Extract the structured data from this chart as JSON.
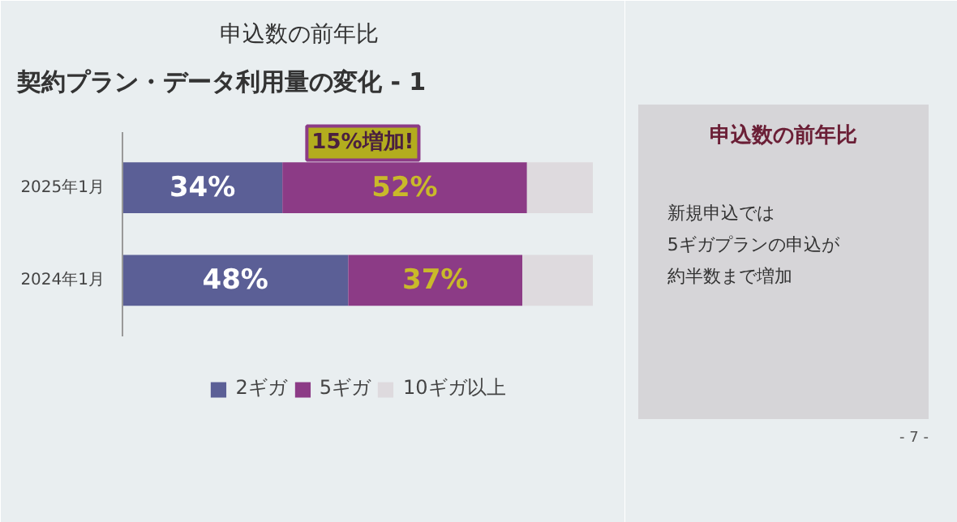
{
  "chart_data": [
    {
      "type": "bar",
      "orientation": "horizontal",
      "stacked": true,
      "title": "契約プラン・データ利用量の変化 - 1",
      "subtitle": "申込数の前年比",
      "categories": [
        "2025年1月",
        "2024年1月"
      ],
      "series": [
        {
          "name": "2ギガ",
          "color": "#5b5f96",
          "values": [
            34,
            48
          ],
          "value_labels": [
            "34%",
            "48%"
          ]
        },
        {
          "name": "5ギガ",
          "color": "#8c3b86",
          "values": [
            52,
            37
          ],
          "value_labels": [
            "52%",
            "37%"
          ]
        },
        {
          "name": "10ギガ以上",
          "color": "#dedade",
          "values": [
            14,
            15
          ]
        }
      ],
      "xlim": [
        0,
        100
      ],
      "tick_labels": "y",
      "legend": "bottom",
      "grid": false,
      "annotations": [
        "15%増加!"
      ]
    },
    {
      "type": "other",
      "title": "申込数の前年比",
      "annotations": [
        "新規申込では",
        "5ギガプランの申込が",
        "約半数まで増加",
        "- 7 -"
      ]
    }
  ]
}
